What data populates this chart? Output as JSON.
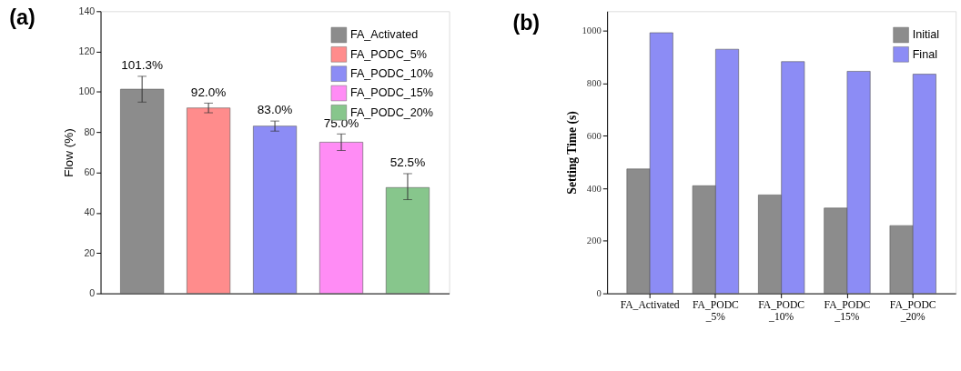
{
  "chart_data": [
    {
      "type": "bar",
      "title": "(a)",
      "ylabel": "Flow (%)",
      "categories": [
        null,
        null,
        null,
        null,
        null
      ],
      "ylim": [
        0,
        140
      ],
      "yticks": [
        0,
        20,
        40,
        60,
        80,
        100,
        120,
        140
      ],
      "legend": "top right",
      "tick_labels": "y",
      "grid": false,
      "series": [
        {
          "name": "FA_Activated",
          "color": "#8c8c8c",
          "values": [
            101.3,
            null,
            null,
            null,
            null
          ],
          "errors": [
            6.4,
            null,
            null,
            null,
            null
          ],
          "value_labels": [
            "101.3%",
            null,
            null,
            null,
            null
          ]
        },
        {
          "name": "FA_PODC_5%",
          "color": "#ff8c8c",
          "values": [
            null,
            92.0,
            null,
            null,
            null
          ],
          "errors": [
            null,
            2.4,
            null,
            null,
            null
          ],
          "value_labels": [
            null,
            "92.0%",
            null,
            null,
            null
          ]
        },
        {
          "name": "FA_PODC_10%",
          "color": "#8c8cf5",
          "values": [
            null,
            null,
            83.0,
            null,
            null
          ],
          "errors": [
            null,
            null,
            2.5,
            null,
            null
          ],
          "value_labels": [
            null,
            null,
            "83.0%",
            null,
            null
          ]
        },
        {
          "name": "FA_PODC_15%",
          "color": "#ff8cf5",
          "values": [
            null,
            null,
            null,
            75.0,
            null
          ],
          "errors": [
            null,
            null,
            null,
            4.1,
            null
          ],
          "value_labels": [
            null,
            null,
            null,
            "75.0%",
            null
          ]
        },
        {
          "name": "FA_PODC_20%",
          "color": "#87c68c",
          "values": [
            null,
            null,
            null,
            null,
            52.5
          ],
          "errors": [
            null,
            null,
            null,
            null,
            [
              46.5,
              59.4
            ]
          ],
          "value_labels": [
            null,
            null,
            null,
            null,
            "52.5%"
          ]
        }
      ]
    },
    {
      "type": "bar",
      "title": "(b)",
      "ylabel": "Setting Time (s)",
      "categories": [
        "FA_Activated",
        "FA_PODC\n_5%",
        "FA_PODC\n_10%",
        "FA_PODC\n_15%",
        "FA_PODC\n_20%"
      ],
      "ylim": [
        0,
        1075
      ],
      "yticks": [
        0,
        200,
        400,
        600,
        800,
        1000
      ],
      "legend": "top right",
      "grid": false,
      "series": [
        {
          "name": "Initial",
          "color": "#8c8c8c",
          "values": [
            474,
            410,
            375,
            325,
            258
          ]
        },
        {
          "name": "Final",
          "color": "#8c8cf5",
          "values": [
            993,
            930,
            883,
            846,
            835
          ]
        }
      ]
    }
  ]
}
